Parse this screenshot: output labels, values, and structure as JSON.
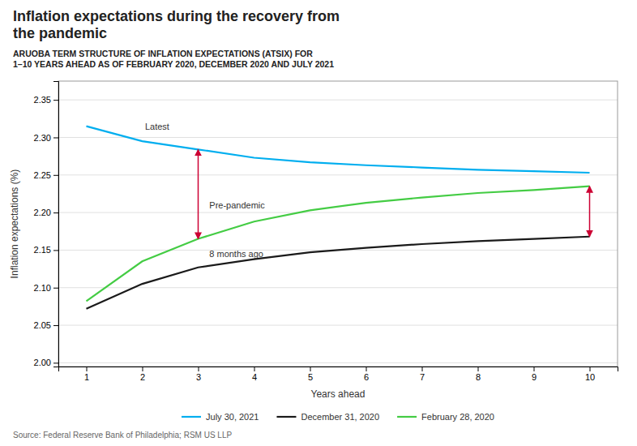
{
  "chart_data": {
    "type": "line",
    "title": "Inflation expectations during the recovery from\nthe pandemic",
    "subtitle": "ARUOBA TERM STRUCTURE OF INFLATION EXPECTATIONS (ATSIX) FOR\n1–10 YEARS AHEAD AS OF FEBRUARY 2020, DECEMBER 2020 AND JULY 2021",
    "source": "Source: Federal Reserve Bank of Philadelphia; RSM US LLP",
    "x_label": "Years ahead",
    "y_label": "Inflation expectations (%)",
    "x": [
      1,
      2,
      3,
      4,
      5,
      6,
      7,
      8,
      9,
      10
    ],
    "series": [
      {
        "name": "July 30, 2021",
        "color": "#00AEEF",
        "values": [
          2.315,
          2.295,
          2.284,
          2.273,
          2.267,
          2.263,
          2.26,
          2.257,
          2.255,
          2.253
        ]
      },
      {
        "name": "December 31, 2020",
        "color": "#1a1a1a",
        "values": [
          2.072,
          2.105,
          2.127,
          2.138,
          2.147,
          2.153,
          2.158,
          2.162,
          2.165,
          2.168
        ]
      },
      {
        "name": "February 28, 2020",
        "color": "#44cc44",
        "values": [
          2.082,
          2.135,
          2.165,
          2.188,
          2.203,
          2.213,
          2.22,
          2.226,
          2.23,
          2.235
        ]
      }
    ],
    "xlim": [
      0.5,
      10.5
    ],
    "ylim": [
      1.995,
      2.375
    ],
    "xticks": [
      1,
      2,
      3,
      4,
      5,
      6,
      7,
      8,
      9,
      10
    ],
    "yticks": [
      {
        "value": 2.0,
        "label": "2.00"
      },
      2.05,
      {
        "value": 2.1,
        "label": "2.10"
      },
      2.15,
      {
        "value": 2.2,
        "label": "2.20"
      },
      2.25,
      {
        "value": 2.3,
        "label": "2.30"
      },
      2.35
    ],
    "grid": true,
    "legend": "bottom",
    "annotations": [
      {
        "text": "Latest",
        "x": 2.05,
        "y": 2.307
      },
      {
        "text": "Pre-pandemic",
        "x": 3.2,
        "y": 2.202
      },
      {
        "text": "8 months ago",
        "x": 3.2,
        "y": 2.137
      }
    ],
    "arrows": [
      {
        "x": 3.0,
        "y_bottom": 2.165,
        "y_top": 2.284,
        "color": "#cc0033"
      },
      {
        "x": 10.0,
        "y_bottom": 2.168,
        "y_top": 2.235,
        "color": "#cc0033"
      }
    ]
  }
}
